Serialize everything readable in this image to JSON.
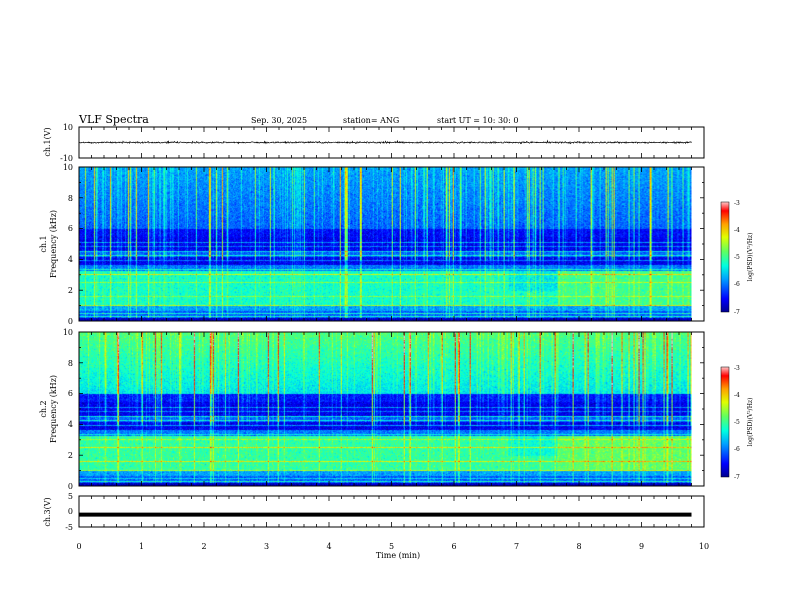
{
  "header": {
    "title": "VLF Spectra",
    "date": "Sep. 30, 2025",
    "station": "station= ANG",
    "start_ut": "start  UT =   10: 30: 0"
  },
  "colors": {
    "waveform": "#000000",
    "colormap": [
      "#00008f",
      "#0000ff",
      "#00a0ff",
      "#00ffe0",
      "#60ff60",
      "#e0ff00",
      "#ffa000",
      "#ff0000",
      "#ffc8c8"
    ]
  },
  "chart_data": [
    {
      "type": "line",
      "panel": "ch1-waveform",
      "ylabel": "ch.1(V)",
      "ylim": [
        -10,
        10
      ],
      "yticks": [
        "10",
        "-10"
      ],
      "xlim": [
        0,
        10
      ],
      "approx_value_range": [
        -1.5,
        1.0
      ],
      "series_level": 0
    },
    {
      "type": "heatmap",
      "panel": "ch1-spectrogram",
      "ylabel": "ch.1\nFrequency (kHz)",
      "ylim": [
        0,
        10
      ],
      "yticks": [
        "0",
        "2",
        "4",
        "6",
        "8",
        "10"
      ],
      "xlim": [
        0,
        10
      ],
      "data_end_min": 9.8,
      "colorbar": {
        "label": "log(PSD)(V²/Hz)",
        "range": [
          -7,
          -3
        ],
        "ticks": [
          "-3",
          "-4",
          "-5",
          "-6",
          "-7"
        ]
      }
    },
    {
      "type": "heatmap",
      "panel": "ch2-spectrogram",
      "ylabel": "ch.2\nFrequency (kHz)",
      "ylim": [
        0,
        10
      ],
      "yticks": [
        "0",
        "2",
        "4",
        "6",
        "8",
        "10"
      ],
      "xlim": [
        0,
        10
      ],
      "data_end_min": 9.8,
      "colorbar": {
        "label": "log(PSD)(V²/Hz)",
        "range": [
          -7,
          -3
        ],
        "ticks": [
          "-3",
          "-4",
          "-5",
          "-6",
          "-7"
        ]
      }
    },
    {
      "type": "line",
      "panel": "ch3-waveform",
      "ylabel": "ch.3(V)",
      "ylim": [
        -5,
        5
      ],
      "yticks": [
        "5",
        "0",
        "-5"
      ],
      "xlim": [
        0,
        10
      ],
      "series_level": -1.0
    }
  ],
  "xaxis": {
    "label": "Time (min)",
    "ticks": [
      "0",
      "1",
      "2",
      "3",
      "4",
      "5",
      "6",
      "7",
      "8",
      "9",
      "10"
    ]
  }
}
